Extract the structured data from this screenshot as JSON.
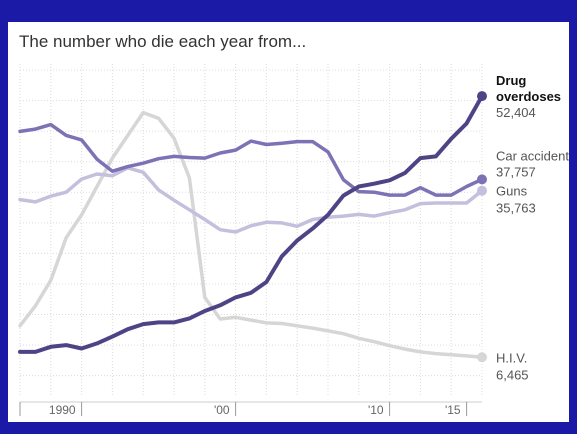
{
  "chart_data": {
    "type": "line",
    "title": "The number who die each year from...",
    "xlabel": "",
    "ylabel": "",
    "x": [
      1986,
      1987,
      1988,
      1989,
      1990,
      1991,
      1992,
      1993,
      1994,
      1995,
      1996,
      1997,
      1998,
      1999,
      2000,
      2001,
      2002,
      2003,
      2004,
      2005,
      2006,
      2007,
      2008,
      2009,
      2010,
      2011,
      2012,
      2013,
      2014,
      2015,
      2016
    ],
    "xlim": [
      1986,
      2016
    ],
    "ylim": [
      0,
      57000
    ],
    "x_ticks": [
      {
        "value": 1990,
        "label": "1990"
      },
      {
        "value": 2000,
        "label": "'00"
      },
      {
        "value": 2010,
        "label": "'10"
      },
      {
        "value": 2015,
        "label": "'15"
      }
    ],
    "grid": "dotted",
    "series": [
      {
        "key": "hiv",
        "name": "H.I.V.",
        "end_value": "6,465",
        "color": "#d6d6d6",
        "values": [
          12000,
          15500,
          20000,
          27500,
          31500,
          36500,
          41500,
          45500,
          49500,
          48500,
          45000,
          38000,
          17000,
          13200,
          13500,
          13000,
          12500,
          12400,
          12000,
          11600,
          11100,
          10600,
          9800,
          9200,
          8500,
          7900,
          7400,
          7100,
          6900,
          6700,
          6465
        ]
      },
      {
        "key": "guns",
        "name": "Guns",
        "end_value": "35,763",
        "color": "#c3bfdd",
        "values": [
          34200,
          33800,
          34800,
          35500,
          37800,
          38700,
          38400,
          39800,
          39000,
          35900,
          34100,
          32400,
          30700,
          28900,
          28500,
          29600,
          30200,
          30100,
          29500,
          30700,
          31100,
          31300,
          31600,
          31300,
          31900,
          32400,
          33500,
          33600,
          33600,
          33600,
          35763
        ]
      },
      {
        "key": "car",
        "name": "Car accidents",
        "end_value": "37,757",
        "color": "#7b73b5",
        "values": [
          46200,
          46600,
          47400,
          45500,
          44700,
          41300,
          39200,
          40000,
          40600,
          41400,
          41800,
          41600,
          41500,
          42400,
          42900,
          44500,
          43900,
          44100,
          44400,
          44400,
          42600,
          37700,
          35600,
          35500,
          35000,
          35000,
          36300,
          35000,
          35000,
          36500,
          37757
        ]
      },
      {
        "key": "drug",
        "name": "Drug overdoses",
        "end_value": "52,404",
        "color": "#4f4386",
        "values": [
          7400,
          7400,
          8300,
          8600,
          8000,
          8900,
          10100,
          11400,
          12300,
          12600,
          12600,
          13300,
          14600,
          15600,
          17000,
          17800,
          19700,
          24200,
          27000,
          29100,
          31500,
          34900,
          36500,
          37000,
          37600,
          38900,
          41500,
          41800,
          44900,
          47600,
          52404
        ]
      }
    ]
  }
}
